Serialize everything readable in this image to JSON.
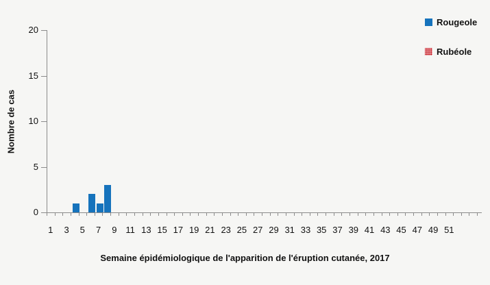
{
  "colors": {
    "background": "#F6F6F4",
    "axis": "#8A8A8A",
    "text": "#111111",
    "rougeole_blue": "#1673BC",
    "rubeole_red": "#C8232C"
  },
  "chart_data": {
    "type": "bar",
    "title": "",
    "xlabel": "Semaine épidémiologique de l'apparition de l'éruption cutanée, 2017",
    "ylabel": "Nombre de cas",
    "grid": false,
    "legend_position": "top-right",
    "x_axis": {
      "unit": "semaine",
      "first_week": 1,
      "last_week": 54,
      "labeled_ticks": [
        1,
        3,
        5,
        7,
        9,
        11,
        13,
        15,
        17,
        19,
        21,
        23,
        25,
        27,
        29,
        31,
        33,
        35,
        37,
        39,
        41,
        43,
        45,
        47,
        49,
        51
      ]
    },
    "y_axis": {
      "min": 0,
      "max": 20,
      "ticks": [
        0,
        5,
        10,
        15,
        20
      ]
    },
    "series": [
      {
        "name": "Rougeole",
        "color": "#1673BC",
        "fill": "solid",
        "data": [
          {
            "week": 4,
            "cases": 1
          },
          {
            "week": 6,
            "cases": 2
          },
          {
            "week": 7,
            "cases": 1
          },
          {
            "week": 8,
            "cases": 3
          }
        ]
      },
      {
        "name": "Rubéole",
        "color": "#C8232C",
        "fill": "dotted",
        "data": []
      }
    ]
  }
}
